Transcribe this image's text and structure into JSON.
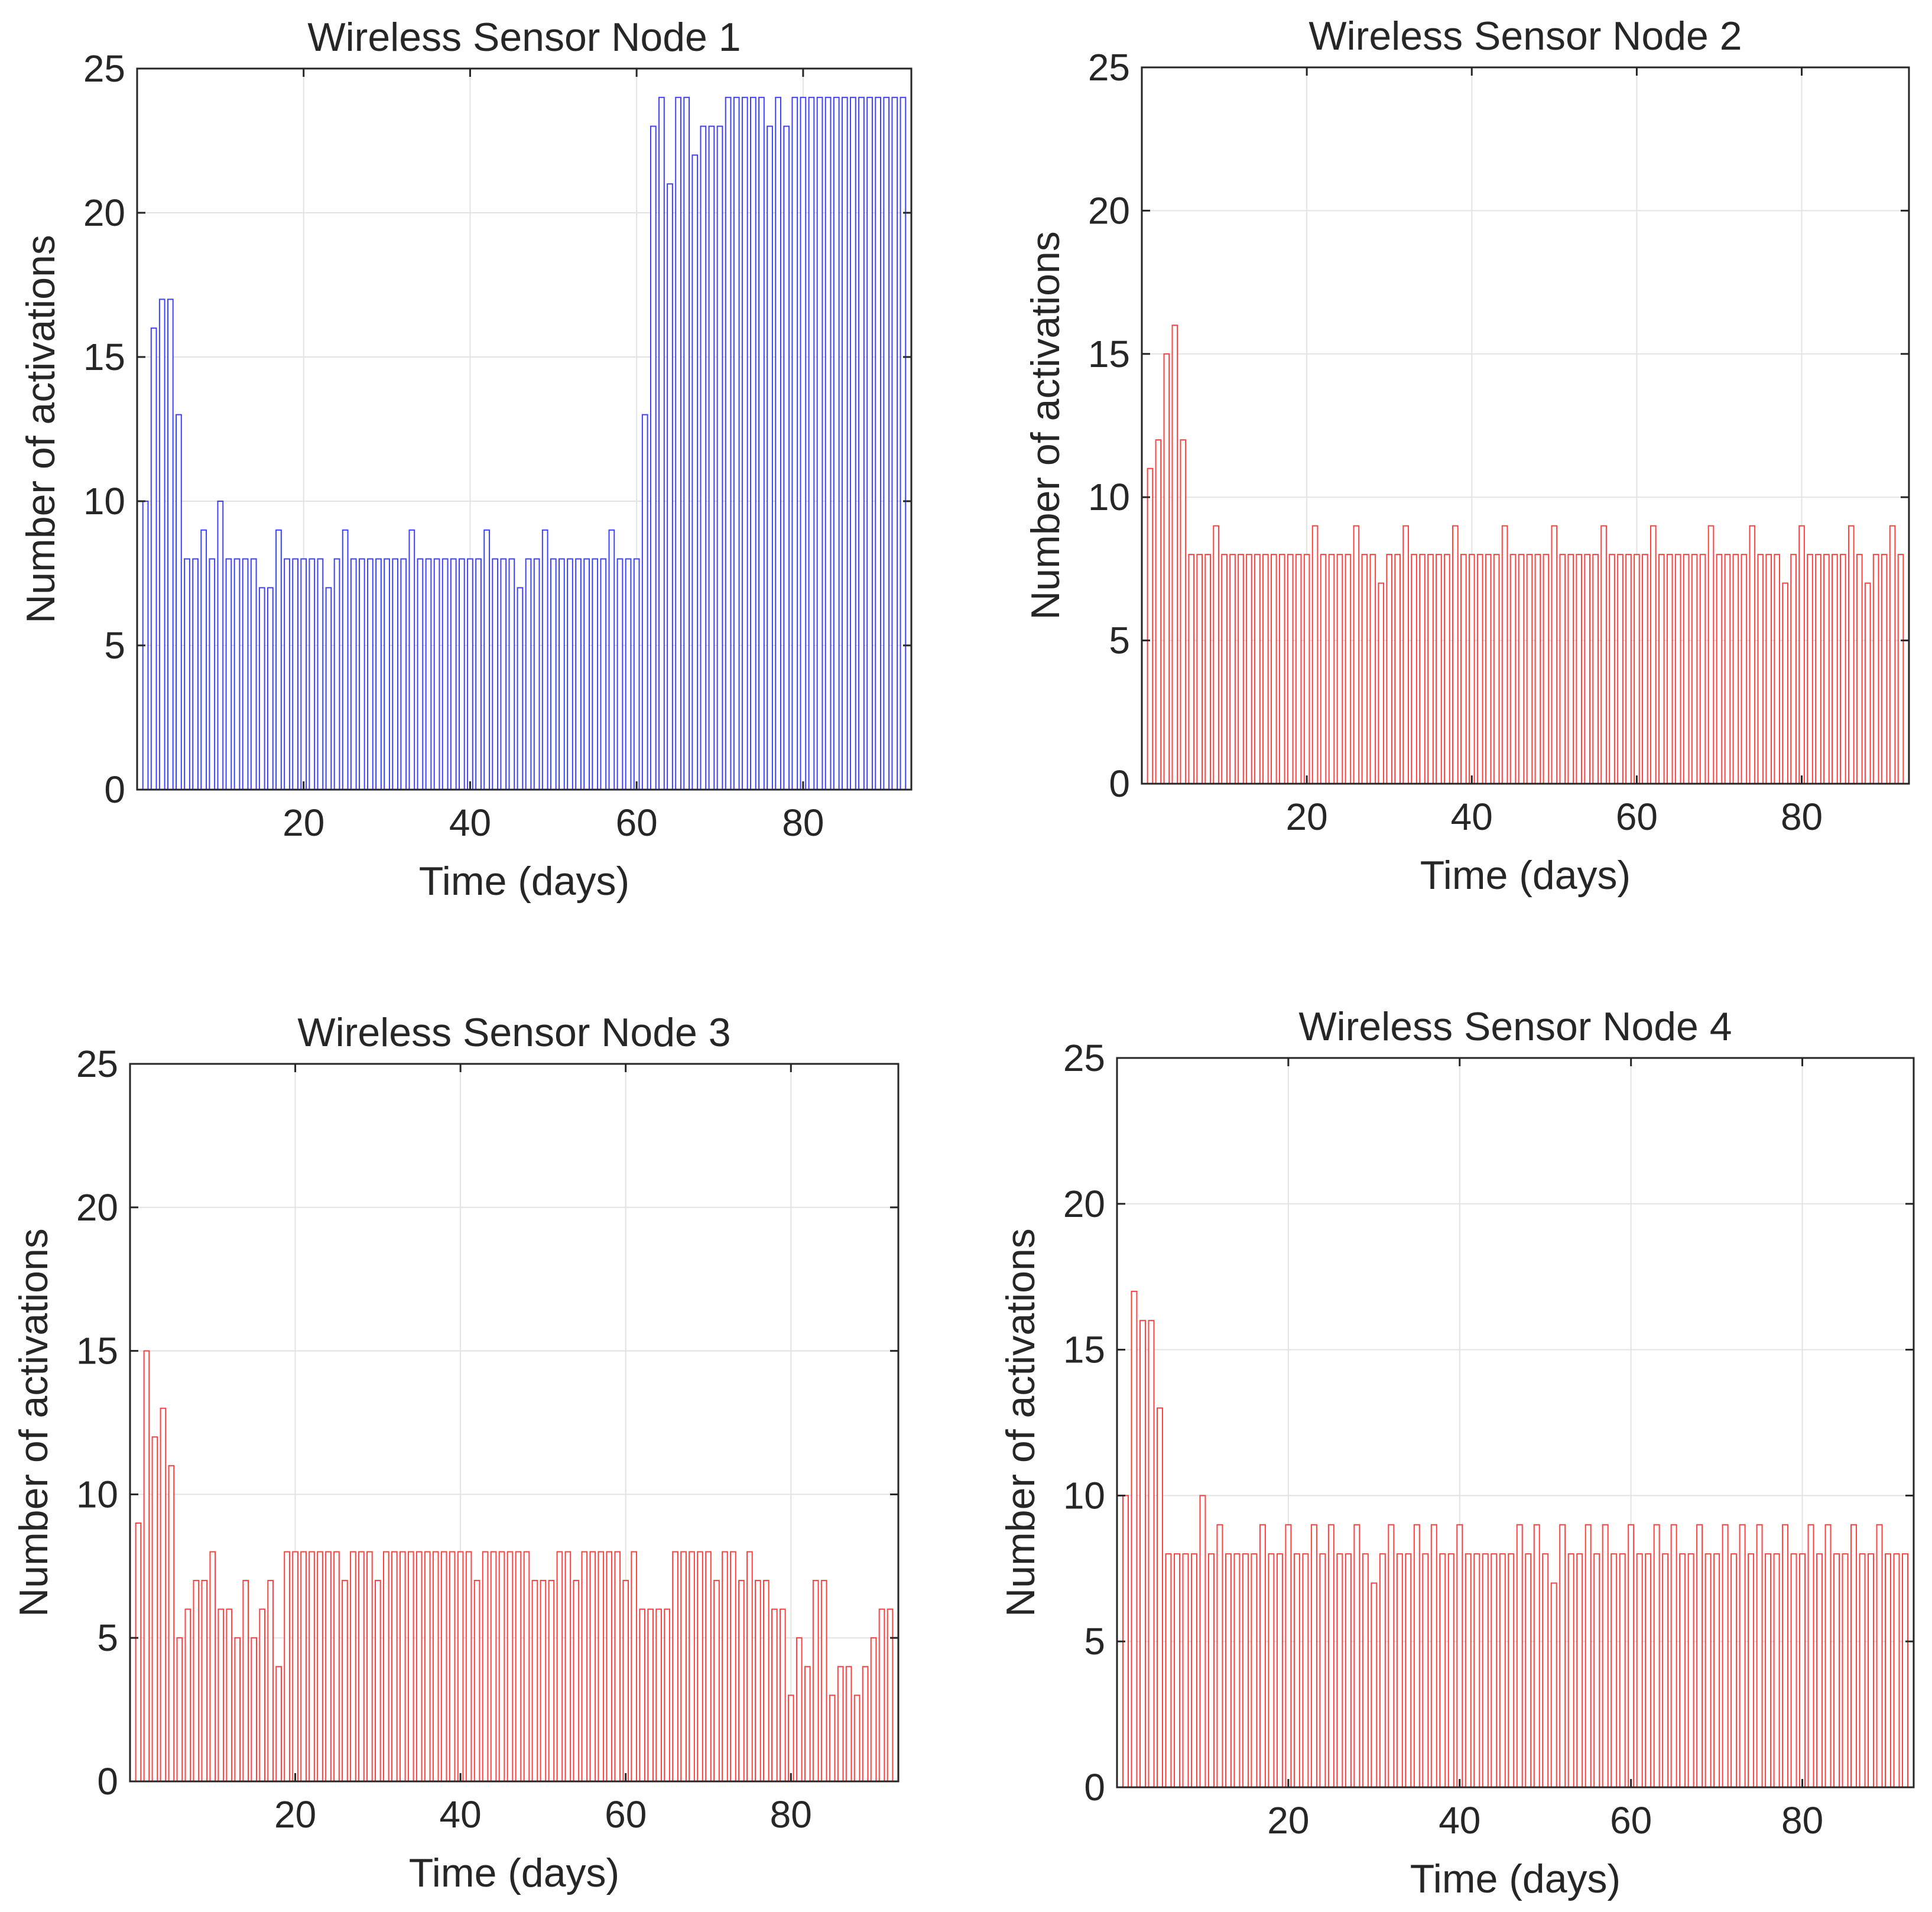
{
  "chart_data": [
    {
      "type": "bar",
      "title": "Wireless Sensor Node 1",
      "xlabel": "Time (days)",
      "ylabel": "Number of activations",
      "xlim": [
        0,
        93
      ],
      "ylim": [
        0,
        25
      ],
      "xticks": [
        20,
        40,
        60,
        80
      ],
      "yticks": [
        0,
        5,
        10,
        15,
        20,
        25
      ],
      "grid": true,
      "color": "#0000ff",
      "x": [
        1,
        2,
        3,
        4,
        5,
        6,
        7,
        8,
        9,
        10,
        11,
        12,
        13,
        14,
        15,
        16,
        17,
        18,
        19,
        20,
        21,
        22,
        23,
        24,
        25,
        26,
        27,
        28,
        29,
        30,
        31,
        32,
        33,
        34,
        35,
        36,
        37,
        38,
        39,
        40,
        41,
        42,
        43,
        44,
        45,
        46,
        47,
        48,
        49,
        50,
        51,
        52,
        53,
        54,
        55,
        56,
        57,
        58,
        59,
        60,
        61,
        62,
        63,
        64,
        65,
        66,
        67,
        68,
        69,
        70,
        71,
        72,
        73,
        74,
        75,
        76,
        77,
        78,
        79,
        80,
        81,
        82,
        83,
        84,
        85,
        86,
        87,
        88,
        89,
        90,
        91,
        92
      ],
      "values": [
        10,
        16,
        17,
        17,
        13,
        8,
        8,
        9,
        8,
        10,
        8,
        8,
        8,
        8,
        7,
        7,
        9,
        8,
        8,
        8,
        8,
        8,
        7,
        8,
        9,
        8,
        8,
        8,
        8,
        8,
        8,
        8,
        9,
        8,
        8,
        8,
        8,
        8,
        8,
        8,
        8,
        9,
        8,
        8,
        8,
        7,
        8,
        8,
        9,
        8,
        8,
        8,
        8,
        8,
        8,
        8,
        9,
        8,
        8,
        8,
        13,
        23,
        24,
        21,
        24,
        24,
        22,
        23,
        23,
        23,
        24,
        24,
        24,
        24,
        24,
        23,
        24,
        23,
        24,
        24,
        24,
        24,
        24,
        24,
        24,
        24,
        24,
        24,
        24,
        24,
        24,
        24
      ]
    },
    {
      "type": "bar",
      "title": "Wireless Sensor Node 2",
      "xlabel": "Time (days)",
      "ylabel": "Number of activations",
      "xlim": [
        0,
        93
      ],
      "ylim": [
        0,
        25
      ],
      "xticks": [
        20,
        40,
        60,
        80
      ],
      "yticks": [
        0,
        5,
        10,
        15,
        20,
        25
      ],
      "grid": true,
      "color": "#ff0000",
      "x": [
        1,
        2,
        3,
        4,
        5,
        6,
        7,
        8,
        9,
        10,
        11,
        12,
        13,
        14,
        15,
        16,
        17,
        18,
        19,
        20,
        21,
        22,
        23,
        24,
        25,
        26,
        27,
        28,
        29,
        30,
        31,
        32,
        33,
        34,
        35,
        36,
        37,
        38,
        39,
        40,
        41,
        42,
        43,
        44,
        45,
        46,
        47,
        48,
        49,
        50,
        51,
        52,
        53,
        54,
        55,
        56,
        57,
        58,
        59,
        60,
        61,
        62,
        63,
        64,
        65,
        66,
        67,
        68,
        69,
        70,
        71,
        72,
        73,
        74,
        75,
        76,
        77,
        78,
        79,
        80,
        81,
        82,
        83,
        84,
        85,
        86,
        87,
        88,
        89,
        90,
        91,
        92
      ],
      "values": [
        11,
        12,
        15,
        16,
        12,
        8,
        8,
        8,
        9,
        8,
        8,
        8,
        8,
        8,
        8,
        8,
        8,
        8,
        8,
        8,
        9,
        8,
        8,
        8,
        8,
        9,
        8,
        8,
        7,
        8,
        8,
        9,
        8,
        8,
        8,
        8,
        8,
        9,
        8,
        8,
        8,
        8,
        8,
        9,
        8,
        8,
        8,
        8,
        8,
        9,
        8,
        8,
        8,
        8,
        8,
        9,
        8,
        8,
        8,
        8,
        8,
        9,
        8,
        8,
        8,
        8,
        8,
        8,
        9,
        8,
        8,
        8,
        8,
        9,
        8,
        8,
        8,
        7,
        8,
        9,
        8,
        8,
        8,
        8,
        8,
        9,
        8,
        7,
        8,
        8,
        9,
        8
      ]
    },
    {
      "type": "bar",
      "title": "Wireless Sensor Node 3",
      "xlabel": "Time (days)",
      "ylabel": "Number of activations",
      "xlim": [
        0,
        93
      ],
      "ylim": [
        0,
        25
      ],
      "xticks": [
        20,
        40,
        60,
        80
      ],
      "yticks": [
        0,
        5,
        10,
        15,
        20,
        25
      ],
      "grid": true,
      "color": "#ff0000",
      "x": [
        1,
        2,
        3,
        4,
        5,
        6,
        7,
        8,
        9,
        10,
        11,
        12,
        13,
        14,
        15,
        16,
        17,
        18,
        19,
        20,
        21,
        22,
        23,
        24,
        25,
        26,
        27,
        28,
        29,
        30,
        31,
        32,
        33,
        34,
        35,
        36,
        37,
        38,
        39,
        40,
        41,
        42,
        43,
        44,
        45,
        46,
        47,
        48,
        49,
        50,
        51,
        52,
        53,
        54,
        55,
        56,
        57,
        58,
        59,
        60,
        61,
        62,
        63,
        64,
        65,
        66,
        67,
        68,
        69,
        70,
        71,
        72,
        73,
        74,
        75,
        76,
        77,
        78,
        79,
        80,
        81,
        82,
        83,
        84,
        85,
        86,
        87,
        88,
        89,
        90,
        91,
        92
      ],
      "values": [
        9,
        15,
        12,
        13,
        11,
        5,
        6,
        7,
        7,
        8,
        6,
        6,
        5,
        7,
        5,
        6,
        7,
        4,
        8,
        8,
        8,
        8,
        8,
        8,
        8,
        7,
        8,
        8,
        8,
        7,
        8,
        8,
        8,
        8,
        8,
        8,
        8,
        8,
        8,
        8,
        8,
        7,
        8,
        8,
        8,
        8,
        8,
        8,
        7,
        7,
        7,
        8,
        8,
        7,
        8,
        8,
        8,
        8,
        8,
        7,
        8,
        6,
        6,
        6,
        6,
        8,
        8,
        8,
        8,
        8,
        7,
        8,
        8,
        7,
        8,
        7,
        7,
        6,
        6,
        3,
        5,
        4,
        7,
        7,
        3,
        4,
        4,
        3,
        4,
        5,
        6,
        6
      ]
    },
    {
      "type": "bar",
      "title": "Wireless Sensor Node 4",
      "xlabel": "Time (days)",
      "ylabel": "Number of activations",
      "xlim": [
        0,
        93
      ],
      "ylim": [
        0,
        25
      ],
      "xticks": [
        20,
        40,
        60,
        80
      ],
      "yticks": [
        0,
        5,
        10,
        15,
        20,
        25
      ],
      "grid": true,
      "color": "#ff0000",
      "x": [
        1,
        2,
        3,
        4,
        5,
        6,
        7,
        8,
        9,
        10,
        11,
        12,
        13,
        14,
        15,
        16,
        17,
        18,
        19,
        20,
        21,
        22,
        23,
        24,
        25,
        26,
        27,
        28,
        29,
        30,
        31,
        32,
        33,
        34,
        35,
        36,
        37,
        38,
        39,
        40,
        41,
        42,
        43,
        44,
        45,
        46,
        47,
        48,
        49,
        50,
        51,
        52,
        53,
        54,
        55,
        56,
        57,
        58,
        59,
        60,
        61,
        62,
        63,
        64,
        65,
        66,
        67,
        68,
        69,
        70,
        71,
        72,
        73,
        74,
        75,
        76,
        77,
        78,
        79,
        80,
        81,
        82,
        83,
        84,
        85,
        86,
        87,
        88,
        89,
        90,
        91,
        92
      ],
      "values": [
        10,
        17,
        16,
        16,
        13,
        8,
        8,
        8,
        8,
        10,
        8,
        9,
        8,
        8,
        8,
        8,
        9,
        8,
        8,
        9,
        8,
        8,
        9,
        8,
        9,
        8,
        8,
        9,
        8,
        7,
        8,
        9,
        8,
        8,
        9,
        8,
        9,
        8,
        8,
        9,
        8,
        8,
        8,
        8,
        8,
        8,
        9,
        8,
        9,
        8,
        7,
        9,
        8,
        8,
        9,
        8,
        9,
        8,
        8,
        9,
        8,
        8,
        9,
        8,
        9,
        8,
        8,
        9,
        8,
        8,
        9,
        8,
        9,
        8,
        9,
        8,
        8,
        9,
        8,
        8,
        9,
        8,
        9,
        8,
        8,
        9,
        8,
        8,
        9,
        8,
        8,
        8
      ]
    }
  ]
}
